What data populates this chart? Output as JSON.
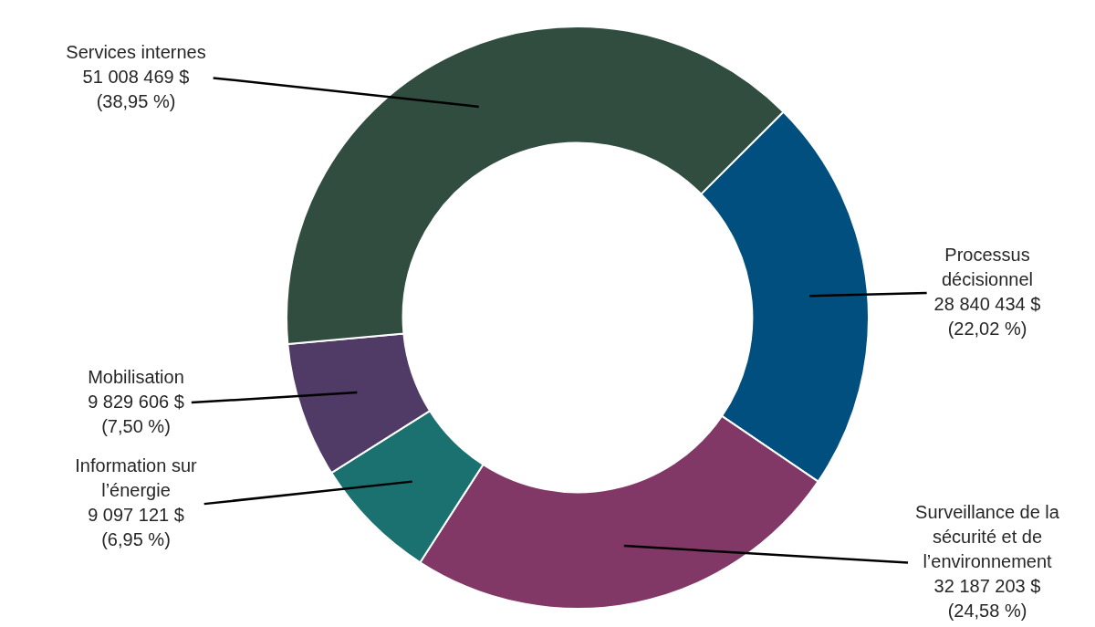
{
  "chart_data": {
    "type": "donut",
    "categories": [
      "Processus décisionnel",
      "Surveillance de la sécurité et de l’environnement",
      "Information sur l’énergie",
      "Mobilisation",
      "Services internes"
    ],
    "values": [
      28840434,
      32187203,
      9097121,
      9829606,
      51008469
    ],
    "colors": [
      "#004f7f",
      "#823867",
      "#1b7070",
      "#503a66",
      "#314d40"
    ],
    "value_labels": [
      "28 840 434 $\n(22,02 %)",
      "32 187 203 $\n(24,58 %)",
      "9 097 121 $\n(6,95 %)",
      "9 829 606 $\n(7,50 %)",
      "51 008 469 $\n(38,95 %)"
    ],
    "legend": false
  }
}
